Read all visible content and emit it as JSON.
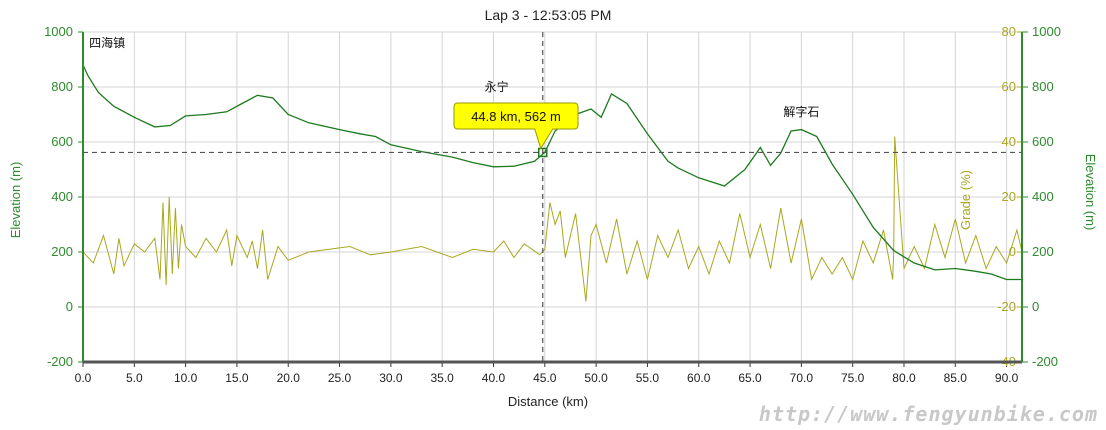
{
  "chart_data": {
    "type": "line",
    "title": "Lap 3 - 12:53:05 PM",
    "xlabel": "Distance (km)",
    "ylabel_left": "Elevation (m)",
    "ylabel_right_inner": "Grade (%)",
    "ylabel_right_outer": "Elevation (m)",
    "xlim": [
      0,
      91.5
    ],
    "ylim_elevation": [
      -200,
      1000
    ],
    "ylim_grade": [
      -40,
      80
    ],
    "x_ticks": [
      "0.0",
      "5.0",
      "10.0",
      "15.0",
      "20.0",
      "25.0",
      "30.0",
      "35.0",
      "40.0",
      "45.0",
      "50.0",
      "55.0",
      "60.0",
      "65.0",
      "70.0",
      "75.0",
      "80.0",
      "85.0",
      "90.0"
    ],
    "x_tick_values": [
      0,
      5,
      10,
      15,
      20,
      25,
      30,
      35,
      40,
      45,
      50,
      55,
      60,
      65,
      70,
      75,
      80,
      85,
      90
    ],
    "elevation_ticks": [
      "-200",
      "0",
      "200",
      "400",
      "600",
      "800",
      "1000"
    ],
    "elevation_tick_values": [
      -200,
      0,
      200,
      400,
      600,
      800,
      1000
    ],
    "grade_ticks": [
      "-40",
      "-20",
      "0",
      "20",
      "40",
      "60",
      "80"
    ],
    "grade_tick_values": [
      -40,
      -20,
      0,
      20,
      40,
      60,
      80
    ],
    "colors": {
      "elevation": "#1e7a1e",
      "grade": "#a8a820",
      "axis": "#2e8b2e",
      "grid": "#d4d4d4",
      "crosshair": "#555555",
      "tooltip_bg": "#ffff00"
    },
    "annotations": [
      {
        "label": "四海镇",
        "x": 0.3,
        "y": 960
      },
      {
        "label": "永宁",
        "x": 40.3,
        "y": 800
      },
      {
        "label": "解字石",
        "x": 70.0,
        "y": 710
      }
    ],
    "cursor": {
      "x": 44.8,
      "y": 562,
      "label": "44.8 km, 562 m"
    },
    "series": [
      {
        "name": "Elevation (m)",
        "x": [
          0,
          0.5,
          1.5,
          3,
          5,
          7,
          8.5,
          10,
          12,
          14,
          15.5,
          17,
          18.5,
          20,
          22,
          25,
          27,
          28.5,
          30,
          33,
          36,
          38,
          40,
          42,
          44,
          45,
          46,
          48,
          49.5,
          50.5,
          51.5,
          53,
          55,
          57,
          58,
          60,
          62.5,
          64.5,
          66,
          67,
          68,
          69,
          70,
          71.5,
          73,
          75,
          77,
          79,
          81,
          83,
          85,
          87,
          88.5,
          90,
          91.5
        ],
        "values": [
          880,
          840,
          780,
          730,
          690,
          655,
          660,
          695,
          700,
          710,
          740,
          770,
          760,
          700,
          670,
          645,
          630,
          620,
          590,
          565,
          545,
          525,
          510,
          512,
          530,
          562,
          640,
          700,
          720,
          690,
          775,
          740,
          630,
          530,
          505,
          470,
          440,
          500,
          580,
          515,
          560,
          640,
          645,
          620,
          520,
          410,
          290,
          205,
          160,
          135,
          140,
          130,
          120,
          100,
          100
        ]
      },
      {
        "name": "Grade (%)",
        "x": [
          0,
          1,
          2,
          3,
          3.5,
          4,
          5,
          6,
          7,
          7.5,
          7.8,
          8.1,
          8.4,
          8.7,
          9,
          9.3,
          9.6,
          10,
          11,
          12,
          13,
          14,
          14.5,
          15,
          16,
          16.5,
          17,
          17.5,
          18,
          19,
          20,
          22,
          24,
          26,
          28,
          30,
          33,
          36,
          38,
          40,
          41,
          42,
          43,
          44.5,
          45,
          45.5,
          46,
          46.5,
          47,
          48,
          49,
          49.5,
          50,
          51,
          52,
          53,
          54,
          55,
          56,
          57,
          58,
          59,
          60,
          61,
          62,
          63,
          64,
          65,
          66,
          67,
          68,
          69,
          70,
          71,
          72,
          73,
          74,
          75,
          76,
          77,
          78,
          78.9,
          79,
          79.1,
          80,
          81,
          82,
          83,
          84,
          85,
          86,
          87,
          88,
          89,
          90,
          91,
          91.5
        ],
        "values": [
          0,
          -4,
          6,
          -8,
          5,
          -5,
          3,
          0,
          5,
          -10,
          18,
          -12,
          20,
          -8,
          16,
          -6,
          10,
          2,
          -2,
          5,
          0,
          8,
          -5,
          6,
          -2,
          4,
          -6,
          8,
          -10,
          2,
          -3,
          0,
          1,
          2,
          -1,
          0,
          2,
          -2,
          1,
          0,
          4,
          -2,
          3,
          -1,
          1,
          18,
          10,
          15,
          -2,
          14,
          -18,
          6,
          10,
          -4,
          12,
          -8,
          4,
          -10,
          6,
          -2,
          8,
          -6,
          2,
          -8,
          4,
          -4,
          14,
          -2,
          10,
          -6,
          16,
          -4,
          12,
          -10,
          -2,
          -8,
          -2,
          -10,
          4,
          -4,
          8,
          -10,
          0,
          42,
          -6,
          2,
          -6,
          10,
          -2,
          12,
          -4,
          6,
          -6,
          2,
          -4,
          8,
          0
        ]
      }
    ]
  },
  "watermark": "http://www.fengyunbike.com"
}
